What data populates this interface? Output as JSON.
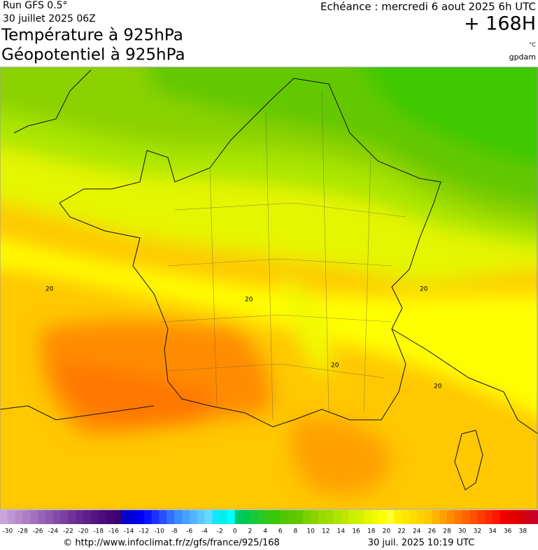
{
  "header": {
    "run": "Run GFS 0.5°",
    "run_date": "30 juillet 2025 06Z",
    "title_1": "Température à 925hPa",
    "title_2": "Géopotentiel à 925hPa",
    "valid": "Echéance : mercredi 6 aout 2025 6h UTC",
    "lead": "+ 168H",
    "unit": "°C",
    "unit_2": "gpdam"
  },
  "map": {
    "contour_labels": [
      "20",
      "20",
      "20",
      "20",
      "20"
    ]
  },
  "colorbar": {
    "ticks": [
      -30,
      -28,
      -26,
      -24,
      -22,
      -20,
      -18,
      -16,
      -14,
      -12,
      -10,
      -8,
      -6,
      -4,
      -2,
      0,
      2,
      4,
      6,
      8,
      10,
      12,
      14,
      16,
      18,
      20,
      22,
      24,
      26,
      28,
      30,
      32,
      34,
      36,
      38
    ],
    "colors": [
      "#c9a3d9",
      "#bf96d2",
      "#b58acb",
      "#ab7dc4",
      "#a171bd",
      "#9764b6",
      "#8d58af",
      "#834ba8",
      "#7a3fa1",
      "#70339a",
      "#672893",
      "#5e1e8c",
      "#551585",
      "#4c0d7e",
      "#440777",
      "#3c0270",
      "#0000c8",
      "#0000dc",
      "#0000f0",
      "#0a14ff",
      "#1e32ff",
      "#2850ff",
      "#326eff",
      "#3c8cff",
      "#46a0ff",
      "#50b4ff",
      "#5ac8ff",
      "#64dcff",
      "#14e6ff",
      "#00f0f0",
      "#00ffff",
      "#00c864",
      "#00c850",
      "#14c83c",
      "#28c828",
      "#32c814",
      "#3cc800",
      "#50c800",
      "#5ac800",
      "#64c800",
      "#78d200",
      "#8cd200",
      "#96dc00",
      "#a0dc00",
      "#aae600",
      "#bee600",
      "#c8f000",
      "#d2f000",
      "#e6f500",
      "#f0fa00",
      "#ffff00",
      "#ffff32",
      "#fff000",
      "#ffe600",
      "#ffdc00",
      "#ffd200",
      "#ffc800",
      "#ffb400",
      "#ffa000",
      "#ff8c00",
      "#ff7800",
      "#ff6400",
      "#ff5000",
      "#ff3c00",
      "#ff2800",
      "#ff1400",
      "#f00000",
      "#e60000",
      "#dc0000",
      "#d20014",
      "#c80028"
    ]
  },
  "footer": {
    "url": "© http://www.infoclimat.fr/z/gfs/france/925/168",
    "date": "30 juil. 2025 10:19 UTC"
  }
}
